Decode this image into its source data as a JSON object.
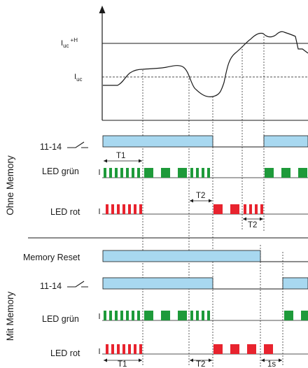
{
  "signal": {
    "level_high": {
      "main": "I",
      "sub": "uc",
      "suffix": "+H"
    },
    "level_low": {
      "main": "I",
      "sub": "uc"
    }
  },
  "sections": {
    "ohne": "Ohne Memory",
    "mit": "Mit Memory"
  },
  "rows": {
    "contact_ohne": "11-14",
    "led_gruen_ohne": "LED grün",
    "led_rot_ohne": "LED rot",
    "memory_reset": "Memory Reset",
    "contact_mit": "11-14",
    "led_gruen_mit": "LED grün",
    "led_rot_mit": "LED rot"
  },
  "timing": {
    "t1_ohne": "T1",
    "t2_ohne_a": "T2",
    "t2_ohne_b": "T2",
    "t1_mit": "T1",
    "t2_mit": "T2",
    "one_s_mit": "1s"
  },
  "colors": {
    "relay_fill": "#a8d8f0",
    "led_green": "#1e9a3a",
    "led_red": "#e8232e",
    "line": "#1a1a1a"
  }
}
